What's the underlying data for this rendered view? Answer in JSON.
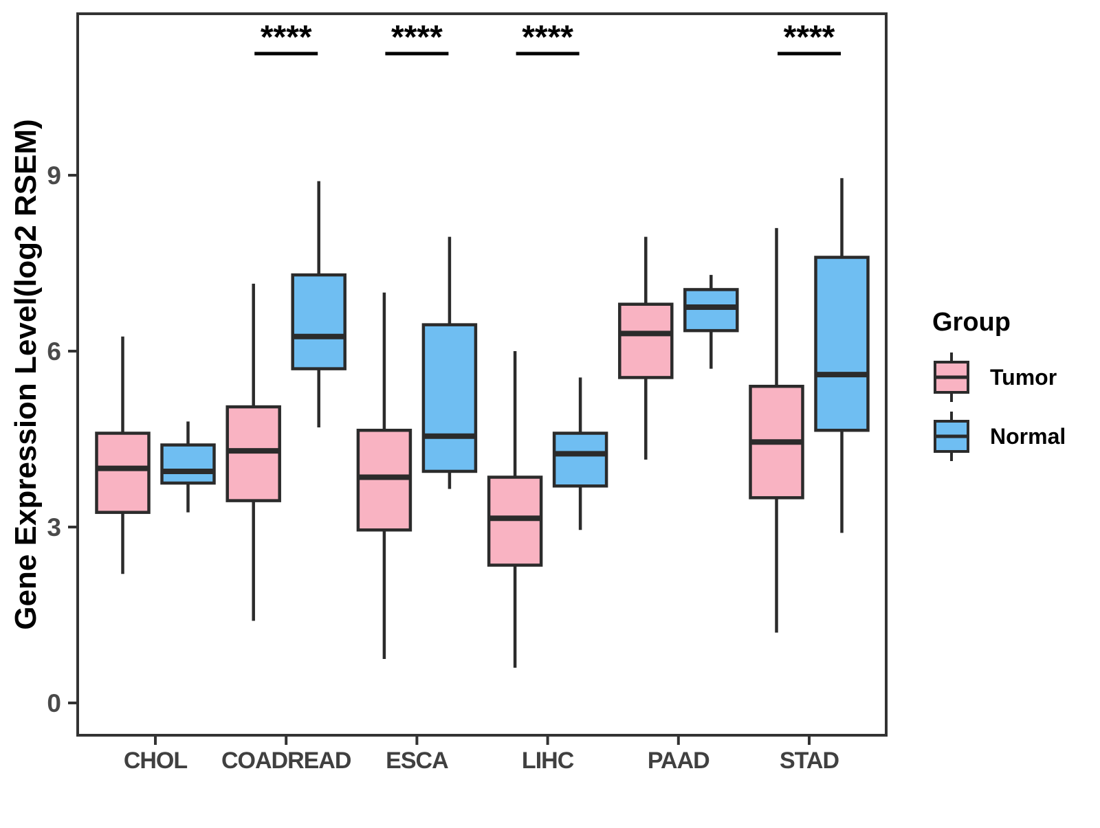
{
  "figure": {
    "y_axis_title": "Gene Expression Level(log2 RSEM)"
  },
  "legend": {
    "title": "Group",
    "items": [
      {
        "label": "Tumor",
        "color": "#F9B3C2"
      },
      {
        "label": "Normal",
        "color": "#6FBEF2"
      }
    ]
  },
  "chart_data": {
    "type": "boxplot",
    "title": "",
    "xlabel": "",
    "ylabel": "Gene Expression Level(log2 RSEM)",
    "categories": [
      "CHOL",
      "COADREAD",
      "ESCA",
      "LIHC",
      "PAAD",
      "STAD"
    ],
    "yticks": [
      0,
      3,
      6,
      9
    ],
    "ylim": [
      -0.55,
      11.75
    ],
    "grid": false,
    "legend_position": "right",
    "groups": [
      "Tumor",
      "Normal"
    ],
    "group_colors": {
      "Tumor": "#F9B3C2",
      "Normal": "#6FBEF2"
    },
    "stroke_color": "#2B2B2B",
    "series": [
      {
        "category": "CHOL",
        "group": "Tumor",
        "whislo": 2.2,
        "q1": 3.25,
        "med": 4.0,
        "q3": 4.6,
        "whishi": 6.25
      },
      {
        "category": "CHOL",
        "group": "Normal",
        "whislo": 3.25,
        "q1": 3.75,
        "med": 3.95,
        "q3": 4.4,
        "whishi": 4.8
      },
      {
        "category": "COADREAD",
        "group": "Tumor",
        "whislo": 1.4,
        "q1": 3.45,
        "med": 4.3,
        "q3": 5.05,
        "whishi": 7.15
      },
      {
        "category": "COADREAD",
        "group": "Normal",
        "whislo": 4.7,
        "q1": 5.7,
        "med": 6.25,
        "q3": 7.3,
        "whishi": 8.9
      },
      {
        "category": "ESCA",
        "group": "Tumor",
        "whislo": 0.75,
        "q1": 2.95,
        "med": 3.85,
        "q3": 4.65,
        "whishi": 7.0
      },
      {
        "category": "ESCA",
        "group": "Normal",
        "whislo": 3.65,
        "q1": 3.95,
        "med": 4.55,
        "q3": 6.45,
        "whishi": 7.95
      },
      {
        "category": "LIHC",
        "group": "Tumor",
        "whislo": 0.6,
        "q1": 2.35,
        "med": 3.15,
        "q3": 3.85,
        "whishi": 6.0
      },
      {
        "category": "LIHC",
        "group": "Normal",
        "whislo": 2.95,
        "q1": 3.7,
        "med": 4.25,
        "q3": 4.6,
        "whishi": 5.55
      },
      {
        "category": "PAAD",
        "group": "Tumor",
        "whislo": 4.15,
        "q1": 5.55,
        "med": 6.3,
        "q3": 6.8,
        "whishi": 7.95
      },
      {
        "category": "PAAD",
        "group": "Normal",
        "whislo": 5.7,
        "q1": 6.35,
        "med": 6.75,
        "q3": 7.05,
        "whishi": 7.3
      },
      {
        "category": "STAD",
        "group": "Tumor",
        "whislo": 1.2,
        "q1": 3.5,
        "med": 4.45,
        "q3": 5.4,
        "whishi": 8.1
      },
      {
        "category": "STAD",
        "group": "Normal",
        "whislo": 2.9,
        "q1": 4.65,
        "med": 5.6,
        "q3": 7.6,
        "whishi": 8.95
      }
    ],
    "significance": [
      {
        "category": "COADREAD",
        "label": "****"
      },
      {
        "category": "ESCA",
        "label": "****"
      },
      {
        "category": "LIHC",
        "label": "****"
      },
      {
        "category": "STAD",
        "label": "****"
      }
    ]
  }
}
